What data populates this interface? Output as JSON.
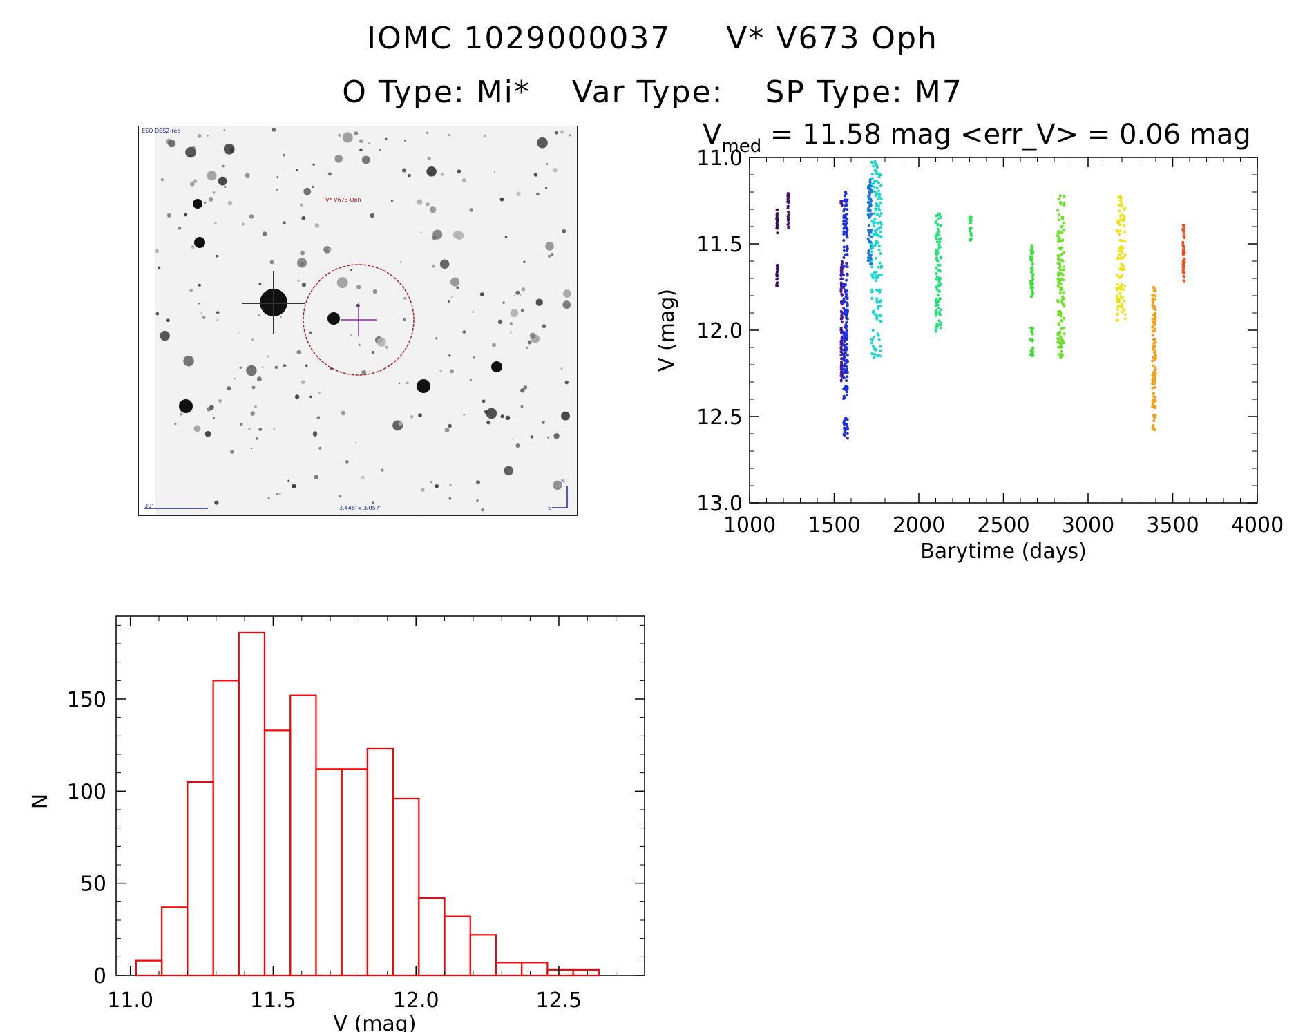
{
  "header": {
    "line1_id": "IOMC 1029000037",
    "line1_name": "V* V673 Oph",
    "otype": "O Type: Mi*",
    "vartype": "Var Type:",
    "sptype": "SP Type: M7"
  },
  "sky_image": {
    "survey": "ESO DSS2-red",
    "target_label": "V* V673 Oph",
    "scale_label": "30\"",
    "fov_label": "3.448' x 3.057'",
    "north": "N",
    "east": "E"
  },
  "chart_data": [
    {
      "type": "scatter",
      "title_prefix": "V",
      "title_sub": "med",
      "title_rest": " = 11.58 mag <err_V> = 0.06 mag",
      "xlabel": "Barytime (days)",
      "ylabel": "V (mag)",
      "xlim": [
        1000,
        4000
      ],
      "ylim": [
        13.0,
        11.0
      ],
      "xticks": [
        "1000",
        "1500",
        "2000",
        "2500",
        "3000",
        "3500",
        "4000"
      ],
      "yticks": [
        "11.0",
        "11.5",
        "12.0",
        "12.5",
        "13.0"
      ],
      "series": [
        {
          "name": "s1",
          "color": "#3b0d5c",
          "x": [
            1160,
            1165
          ],
          "y": [
            [
              11.3,
              11.45
            ],
            [
              11.62,
              11.75
            ]
          ]
        },
        {
          "name": "s2",
          "color": "#4a1070",
          "x": [
            1225,
            1232
          ],
          "y": [
            [
              11.2,
              11.42
            ]
          ]
        },
        {
          "name": "s3",
          "color": "#4b1a9a",
          "x": [
            1540,
            1548
          ],
          "y": [
            [
              11.25,
              11.28
            ],
            [
              11.6,
              12.3
            ]
          ]
        },
        {
          "name": "s4",
          "color": "#1c2ee0",
          "x": [
            1555,
            1580
          ],
          "y": [
            [
              11.2,
              12.4
            ],
            [
              12.5,
              12.63
            ]
          ]
        },
        {
          "name": "s5",
          "color": "#1877e0",
          "x": [
            1700,
            1720
          ],
          "y": [
            [
              11.12,
              11.62
            ]
          ]
        },
        {
          "name": "s6",
          "color": "#18d8d0",
          "x": [
            1720,
            1780
          ],
          "y": [
            [
              11.02,
              11.95
            ],
            [
              12.0,
              12.16
            ]
          ]
        },
        {
          "name": "s7",
          "color": "#22e07a",
          "x": [
            2100,
            2130
          ],
          "y": [
            [
              11.32,
              11.92
            ],
            [
              11.94,
              12.02
            ]
          ]
        },
        {
          "name": "s8",
          "color": "#2ce05a",
          "x": [
            2300,
            2310
          ],
          "y": [
            [
              11.33,
              11.48
            ]
          ]
        },
        {
          "name": "s9",
          "color": "#3ee03c",
          "x": [
            2660,
            2675
          ],
          "y": [
            [
              11.5,
              11.82
            ],
            [
              11.98,
              12.15
            ]
          ]
        },
        {
          "name": "s10",
          "color": "#6ae028",
          "x": [
            2820,
            2860
          ],
          "y": [
            [
              11.22,
              12.16
            ]
          ]
        },
        {
          "name": "s11",
          "color": "#f0e21a",
          "x": [
            3170,
            3220
          ],
          "y": [
            [
              11.22,
              11.95
            ]
          ]
        },
        {
          "name": "s12",
          "color": "#f0a020",
          "x": [
            3380,
            3400
          ],
          "y": [
            [
              11.75,
              12.58
            ]
          ]
        },
        {
          "name": "s13",
          "color": "#f05020",
          "x": [
            3560,
            3570
          ],
          "y": [
            [
              11.38,
              11.72
            ]
          ]
        }
      ]
    },
    {
      "type": "bar",
      "xlabel": "V (mag)",
      "ylabel": "N",
      "xlim": [
        10.95,
        12.8
      ],
      "ylim": [
        0,
        195
      ],
      "xticks": [
        "11.0",
        "11.5",
        "12.0",
        "12.5"
      ],
      "yticks": [
        "0",
        "50",
        "100",
        "150"
      ],
      "bin_width": 0.09,
      "bin_start": 11.02,
      "values": [
        8,
        37,
        105,
        160,
        186,
        133,
        152,
        112,
        112,
        123,
        96,
        42,
        32,
        22,
        7,
        7,
        3,
        3
      ],
      "color": "#ff0000"
    }
  ]
}
